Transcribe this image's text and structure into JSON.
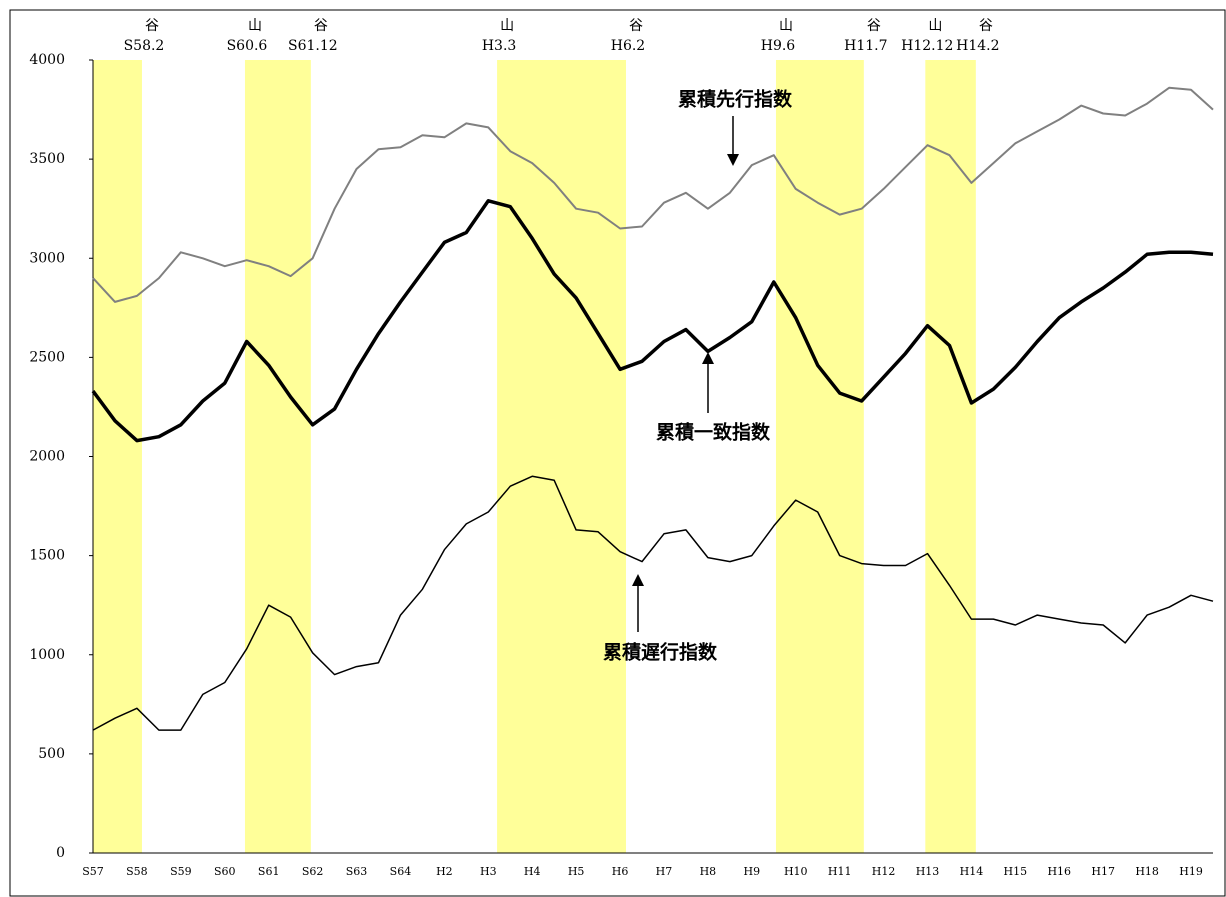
{
  "chart_data": {
    "type": "line",
    "categories": [
      "S57",
      null,
      "S58",
      null,
      "S59",
      null,
      "S60",
      null,
      "S61",
      null,
      "S62",
      null,
      "S63",
      null,
      "S64",
      null,
      "H2",
      null,
      "H3",
      null,
      "H4",
      null,
      "H5",
      null,
      "H6",
      null,
      "H7",
      null,
      "H8",
      null,
      "H9",
      null,
      "H10",
      null,
      "H11",
      null,
      "H12",
      null,
      "H13",
      null,
      "H14",
      null,
      "H15",
      null,
      "H16",
      null,
      "H17",
      null,
      "H18",
      null,
      "H19",
      null
    ],
    "series": [
      {
        "name": "累積先行指数",
        "color": "#808080",
        "values": [
          2900,
          2780,
          2810,
          2900,
          3030,
          3000,
          2960,
          2990,
          2960,
          2910,
          3000,
          3250,
          3450,
          3550,
          3560,
          3620,
          3610,
          3680,
          3660,
          3540,
          3480,
          3380,
          3250,
          3230,
          3150,
          3160,
          3280,
          3330,
          3250,
          3330,
          3470,
          3520,
          3350,
          3280,
          3220,
          3250,
          3350,
          3460,
          3570,
          3520,
          3380,
          3480,
          3580,
          3640,
          3700,
          3770,
          3730,
          3720,
          3780,
          3860,
          3850,
          3750
        ]
      },
      {
        "name": "累積一致指数",
        "color": "#000000",
        "values": [
          2330,
          2180,
          2080,
          2100,
          2160,
          2280,
          2370,
          2580,
          2460,
          2300,
          2160,
          2240,
          2440,
          2620,
          2780,
          2930,
          3080,
          3130,
          3290,
          3260,
          3100,
          2920,
          2800,
          2620,
          2440,
          2480,
          2580,
          2640,
          2530,
          2600,
          2680,
          2880,
          2700,
          2460,
          2320,
          2280,
          2400,
          2520,
          2660,
          2560,
          2270,
          2340,
          2450,
          2580,
          2700,
          2780,
          2850,
          2930,
          3020,
          3030,
          3030,
          3020
        ]
      },
      {
        "name": "累積遅行指数",
        "color": "#000000",
        "values": [
          620,
          680,
          730,
          620,
          620,
          800,
          860,
          1030,
          1250,
          1190,
          1010,
          900,
          940,
          960,
          1200,
          1330,
          1530,
          1660,
          1720,
          1850,
          1900,
          1880,
          1630,
          1620,
          1520,
          1470,
          1610,
          1630,
          1490,
          1470,
          1500,
          1650,
          1780,
          1720,
          1500,
          1460,
          1450,
          1450,
          1510,
          1350,
          1180,
          1180,
          1150,
          1200,
          1180,
          1160,
          1150,
          1060,
          1200,
          1240,
          1300,
          1270
        ]
      }
    ],
    "ylim": [
      0,
      4000
    ],
    "yticks": [
      0,
      500,
      1000,
      1500,
      2000,
      2500,
      3000,
      3500,
      4000
    ],
    "grid": false,
    "band_color": "#ffff99",
    "bands": [
      {
        "start": 0,
        "end": 2.23
      },
      {
        "start": 6.92,
        "end": 9.92
      },
      {
        "start": 18.4,
        "end": 24.27
      },
      {
        "start": 31.1,
        "end": 35.1
      },
      {
        "start": 37.9,
        "end": 40.2
      }
    ],
    "events": [
      {
        "kind": "谷",
        "label": "S58.2",
        "x": 2.23
      },
      {
        "kind": "山",
        "label": "S60.6",
        "x": 6.92
      },
      {
        "kind": "谷",
        "label": "S61.12",
        "x": 9.92
      },
      {
        "kind": "山",
        "label": "H3.3",
        "x": 18.4
      },
      {
        "kind": "谷",
        "label": "H6.2",
        "x": 24.27
      },
      {
        "kind": "山",
        "label": "H9.6",
        "x": 31.1
      },
      {
        "kind": "谷",
        "label": "H11.7",
        "x": 35.1
      },
      {
        "kind": "山",
        "label": "H12.12",
        "x": 37.9
      },
      {
        "kind": "谷",
        "label": "H14.2",
        "x": 40.2
      }
    ]
  }
}
